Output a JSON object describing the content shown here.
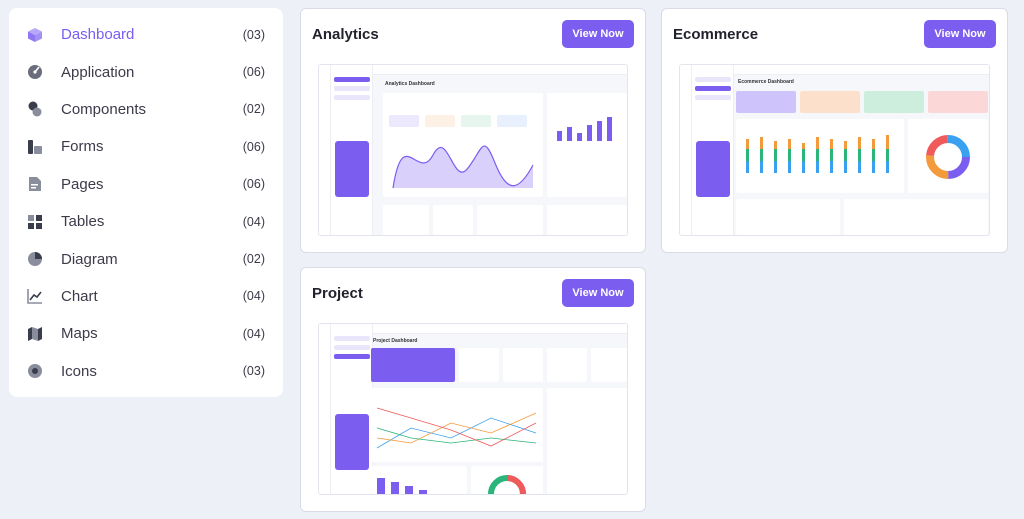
{
  "sidebar": {
    "items": [
      {
        "label": "Dashboard",
        "count": "(03)",
        "icon": "cube-icon",
        "active": true
      },
      {
        "label": "Application",
        "count": "(06)",
        "icon": "gauge-icon"
      },
      {
        "label": "Components",
        "count": "(02)",
        "icon": "components-icon"
      },
      {
        "label": "Forms",
        "count": "(06)",
        "icon": "form-icon"
      },
      {
        "label": "Pages",
        "count": "(06)",
        "icon": "page-icon"
      },
      {
        "label": "Tables",
        "count": "(04)",
        "icon": "table-icon"
      },
      {
        "label": "Diagram",
        "count": "(02)",
        "icon": "pie-icon"
      },
      {
        "label": "Chart",
        "count": "(04)",
        "icon": "chart-icon"
      },
      {
        "label": "Maps",
        "count": "(04)",
        "icon": "map-icon"
      },
      {
        "label": "Icons",
        "count": "(03)",
        "icon": "icons-icon"
      }
    ]
  },
  "cards": [
    {
      "title": "Analytics",
      "button": "View Now",
      "preview_title": "Analytics Dashboard"
    },
    {
      "title": "Ecommerce",
      "button": "View Now",
      "preview_title": "Ecommerce Dashboard"
    },
    {
      "title": "Project",
      "button": "View Now",
      "preview_title": "Project Dashboard"
    }
  ],
  "colors": {
    "accent": "#7b5df0",
    "background": "#eef0f8"
  }
}
